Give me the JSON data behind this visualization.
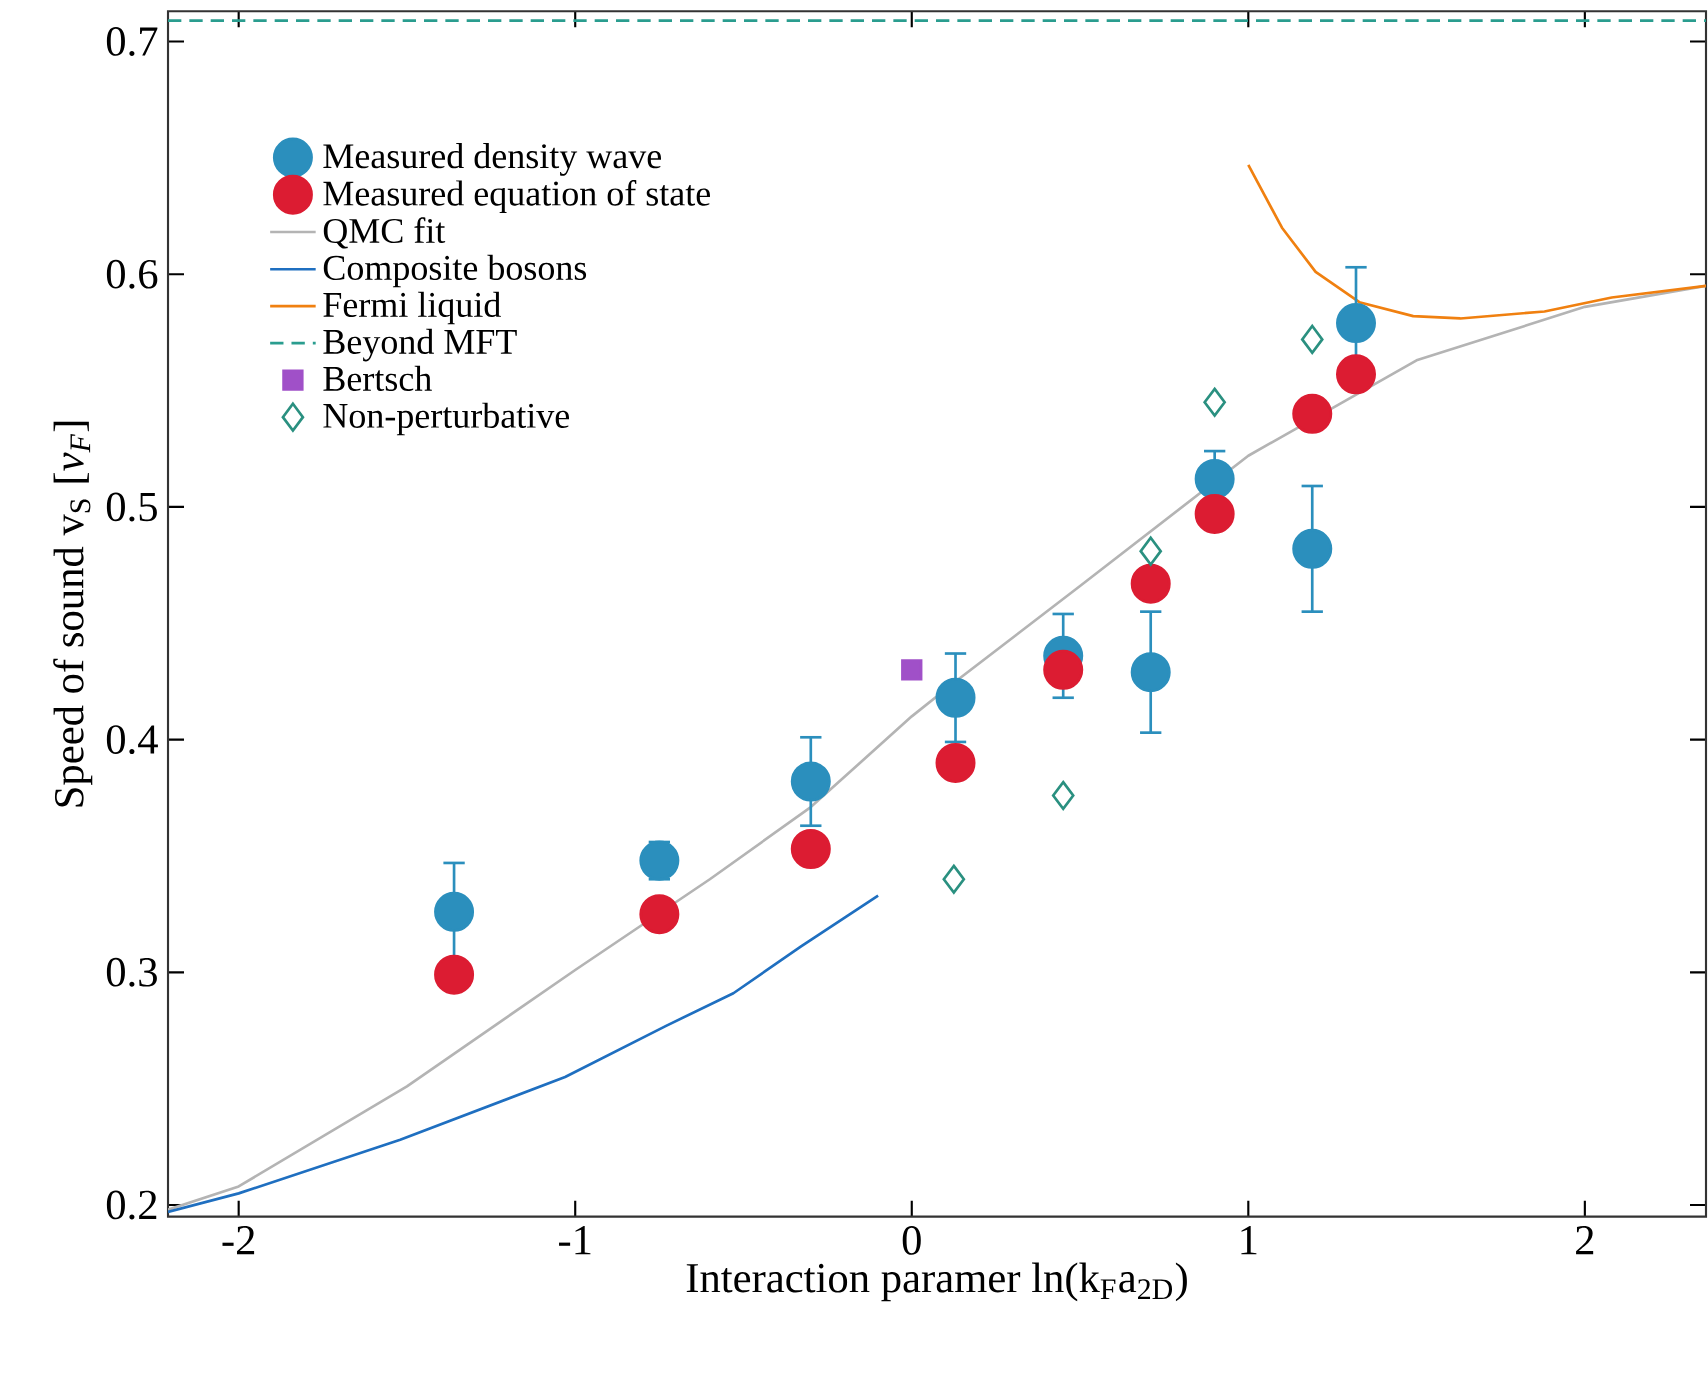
{
  "chart_data": {
    "type": "scatter",
    "xlabel": "Interaction paramer ln(k$_{F}$a$_{2D}$)",
    "ylabel": "Speed of sound v$_{S}$ [*v$_{F}$*]",
    "xlim": [
      -2.21,
      2.36
    ],
    "ylim": [
      0.195,
      0.713
    ],
    "xticks": [
      -2,
      -1,
      0,
      1,
      2
    ],
    "yticks": [
      0.2,
      0.3,
      0.4,
      0.5,
      0.6,
      0.7
    ],
    "legend": "top left",
    "series": [
      {
        "name": "Measured density wave",
        "marker": "circle",
        "color": "#2b8fbd",
        "x": [
          -1.36,
          -0.75,
          -0.3,
          0.13,
          0.45,
          0.71,
          0.9,
          1.19,
          1.32
        ],
        "values": [
          0.326,
          0.348,
          0.382,
          0.418,
          0.436,
          0.429,
          0.512,
          0.482,
          0.579
        ],
        "errors": [
          0.021,
          0.008,
          0.019,
          0.019,
          0.018,
          0.026,
          0.012,
          0.027,
          0.024
        ]
      },
      {
        "name": "Measured equation of state",
        "marker": "circle",
        "color": "#dc1c32",
        "x": [
          -1.36,
          -0.75,
          -0.3,
          0.13,
          0.45,
          0.71,
          0.9,
          1.19,
          1.32
        ],
        "values": [
          0.299,
          0.325,
          0.353,
          0.39,
          0.43,
          0.467,
          0.497,
          0.54,
          0.557
        ]
      },
      {
        "name": "QMC fit",
        "type": "line",
        "color": "#b4b4b4",
        "x": [
          -2.21,
          -2.0,
          -1.5,
          -1.0,
          -0.6,
          -0.3,
          0.0,
          0.13,
          0.5,
          1.0,
          1.5,
          2.0,
          2.36
        ],
        "values": [
          0.198,
          0.208,
          0.251,
          0.301,
          0.34,
          0.371,
          0.41,
          0.425,
          0.466,
          0.522,
          0.563,
          0.586,
          0.595
        ]
      },
      {
        "name": "Composite bosons",
        "type": "line",
        "color": "#1f6fc0",
        "x": [
          -2.21,
          -2.0,
          -1.52,
          -1.03,
          -0.73,
          -0.53,
          -0.33,
          -0.1
        ],
        "values": [
          0.197,
          0.205,
          0.228,
          0.255,
          0.277,
          0.291,
          0.311,
          0.333
        ]
      },
      {
        "name": "Fermi liquid",
        "type": "line",
        "color": "#f08010",
        "x": [
          1.0,
          1.1,
          1.2,
          1.33,
          1.49,
          1.63,
          1.88,
          2.08,
          2.36
        ],
        "values": [
          0.647,
          0.62,
          0.601,
          0.588,
          0.582,
          0.581,
          0.584,
          0.59,
          0.595
        ]
      },
      {
        "name": "Beyond MFT",
        "type": "line",
        "line_style": "dashed",
        "color": "#2a9d8f",
        "x": [
          -2.21,
          2.36
        ],
        "values": [
          0.709,
          0.709
        ]
      },
      {
        "name": "Bertsch",
        "marker": "square",
        "color": "#a050c8",
        "x": [
          0.0
        ],
        "values": [
          0.43
        ]
      },
      {
        "name": "Non-perturbative",
        "marker": "diamond",
        "color": "#2a9080",
        "x": [
          0.125,
          0.45,
          0.71,
          0.9,
          1.19
        ],
        "values": [
          0.34,
          0.376,
          0.481,
          0.545,
          0.572
        ]
      }
    ]
  }
}
